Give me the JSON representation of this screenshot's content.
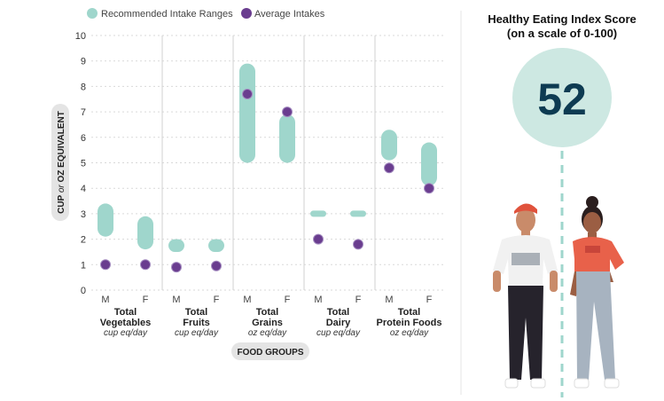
{
  "chart_data": {
    "type": "range-dot",
    "legend": [
      {
        "label": "Recommended Intake Ranges",
        "color": "#9fd6cc"
      },
      {
        "label": "Average Intakes",
        "color": "#6a3d8f"
      }
    ],
    "ylabel_parts": [
      "CUP",
      "or",
      "OZ EQUIVALENT"
    ],
    "xlabel": "FOOD GROUPS",
    "ylim": [
      0,
      10
    ],
    "yticks": [
      0,
      1,
      2,
      3,
      4,
      5,
      6,
      7,
      8,
      9,
      10
    ],
    "groups": [
      {
        "name": "Total\nVegetables",
        "unit": "cup eq/day",
        "bars": [
          {
            "sex": "M",
            "range": [
              2.1,
              3.4
            ],
            "avg": 1.0
          },
          {
            "sex": "F",
            "range": [
              1.6,
              2.9
            ],
            "avg": 1.0
          }
        ]
      },
      {
        "name": "Total\nFruits",
        "unit": "cup eq/day",
        "bars": [
          {
            "sex": "M",
            "range": [
              1.5,
              2.0
            ],
            "avg": 0.9
          },
          {
            "sex": "F",
            "range": [
              1.5,
              2.0
            ],
            "avg": 0.95
          }
        ]
      },
      {
        "name": "Total\nGrains",
        "unit": "oz eq/day",
        "bars": [
          {
            "sex": "M",
            "range": [
              5.0,
              8.9
            ],
            "avg": 7.7
          },
          {
            "sex": "F",
            "range": [
              5.0,
              6.9
            ],
            "avg": 7.0
          }
        ]
      },
      {
        "name": "Total\nDairy",
        "unit": "cup eq/day",
        "bars": [
          {
            "sex": "M",
            "range": [
              3.0,
              3.0
            ],
            "avg": 2.0
          },
          {
            "sex": "F",
            "range": [
              3.0,
              3.0
            ],
            "avg": 1.8
          }
        ]
      },
      {
        "name": "Total\nProtein Foods",
        "unit": "oz eq/day",
        "bars": [
          {
            "sex": "M",
            "range": [
              5.1,
              6.3
            ],
            "avg": 4.8
          },
          {
            "sex": "F",
            "range": [
              4.1,
              5.8
            ],
            "avg": 4.0
          }
        ]
      }
    ]
  },
  "score_panel": {
    "title_line1": "Healthy Eating Index Score",
    "title_line2": "(on a scale of 0-100)",
    "score": "52",
    "circle_color": "#cde8e2",
    "dash_color": "#9fd6cc"
  },
  "illustration": {
    "figures": [
      "man-figure",
      "woman-figure"
    ],
    "man_shirt_color": "#f4f4f4",
    "woman_shirt_color": "#e8614a"
  }
}
